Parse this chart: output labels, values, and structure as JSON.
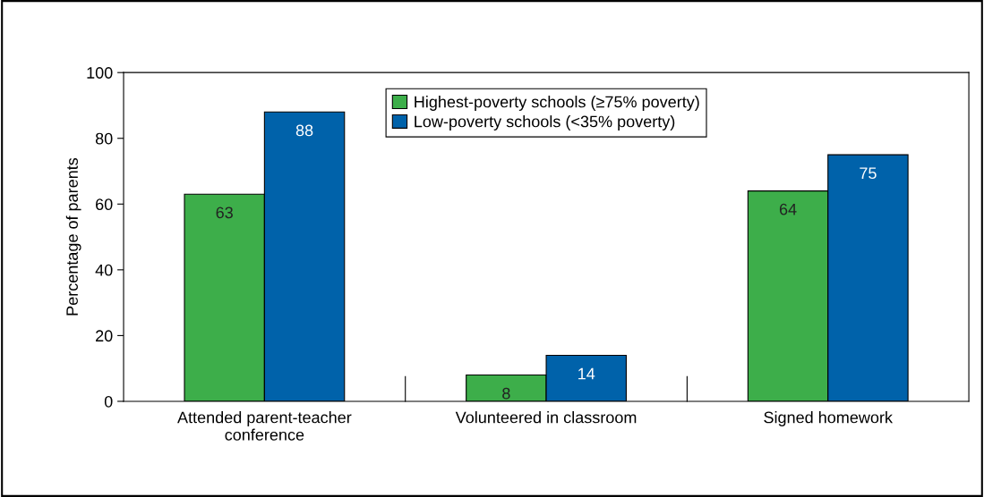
{
  "chart_data": {
    "type": "bar",
    "ylabel": "Percentage of parents",
    "categories": [
      "Attended parent-teacher\nconference",
      "Volunteered in classroom",
      "Signed homework"
    ],
    "series": [
      {
        "name": "Highest-poverty schools (≥75% poverty)",
        "color": "#3dae4a",
        "values": [
          63,
          8,
          64
        ]
      },
      {
        "name": "Low-poverty schools (<35% poverty)",
        "color": "#0062aa",
        "values": [
          88,
          14,
          75
        ]
      }
    ],
    "ylim": [
      0,
      100
    ],
    "yticks": [
      0,
      20,
      40,
      60,
      80,
      100
    ],
    "grid": false,
    "legend": "top",
    "data_labels": true
  }
}
